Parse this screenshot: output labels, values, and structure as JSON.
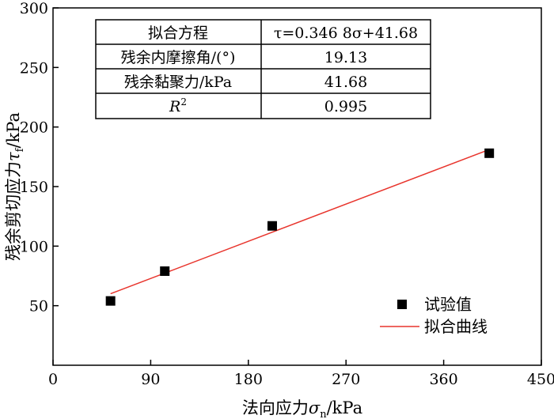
{
  "chart_data": {
    "type": "scatter",
    "xlabel_main": "法向应力",
    "xlabel_symbol": "σ",
    "xlabel_sub": "n",
    "xlabel_unit": "/kPa",
    "ylabel_main": "残余剪切应力",
    "ylabel_symbol": "τ",
    "ylabel_sub": "f",
    "ylabel_unit": "/kPa",
    "xlim": [
      0,
      450
    ],
    "ylim": [
      0,
      300
    ],
    "xticks": [
      0,
      90,
      180,
      270,
      360,
      450
    ],
    "yticks": [
      50,
      100,
      150,
      200,
      250,
      300
    ],
    "series": [
      {
        "name": "试验值",
        "type": "scatter",
        "marker": "square",
        "color": "#000000",
        "x": [
          53,
          103,
          202,
          402
        ],
        "y": [
          54,
          79,
          117,
          178
        ]
      },
      {
        "name": "拟合曲线",
        "type": "line",
        "color": "#e8342c",
        "x": [
          53,
          402
        ],
        "y": [
          60.0,
          181.1
        ]
      }
    ],
    "legend_position": "bottom-right",
    "fit_table": [
      {
        "label": "拟合方程",
        "value": "τ=0.346 8σ+41.68"
      },
      {
        "label": "残余内摩擦角/(°)",
        "value": "19.13"
      },
      {
        "label": "残余黏聚力/kPa",
        "value": "41.68"
      },
      {
        "label": "R",
        "label_sup": "2",
        "value": "0.995"
      }
    ]
  }
}
